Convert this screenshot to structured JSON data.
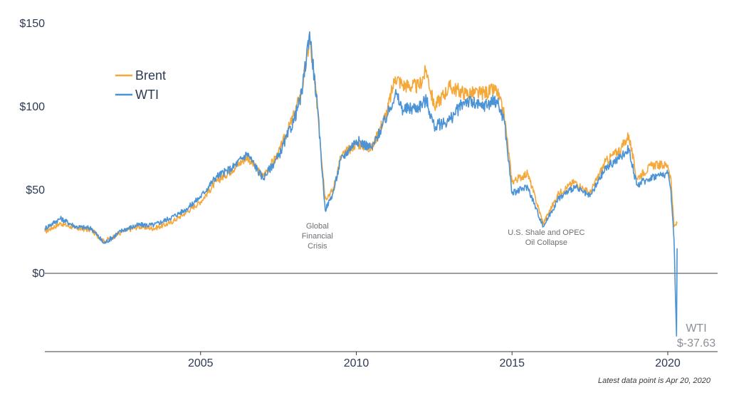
{
  "chart_data": {
    "type": "line",
    "title": "",
    "xlabel": "",
    "ylabel": "",
    "ylim": [
      -47,
      150
    ],
    "xlim": [
      2000,
      2021.6
    ],
    "y_ticks": [
      {
        "value": 150,
        "label": "$150"
      },
      {
        "value": 100,
        "label": "$100"
      },
      {
        "value": 50,
        "label": "$50"
      },
      {
        "value": 0,
        "label": "$0"
      }
    ],
    "x_ticks": [
      {
        "value": 2005,
        "label": "2005"
      },
      {
        "value": 2010,
        "label": "2010"
      },
      {
        "value": 2015,
        "label": "2015"
      },
      {
        "value": 2020,
        "label": "2020"
      }
    ],
    "legend": {
      "position": "top-left",
      "entries": [
        "Brent",
        "WTI"
      ]
    },
    "series": [
      {
        "name": "Brent",
        "color": "#F5A83A",
        "x": [
          2000.0,
          2000.5,
          2001.0,
          2001.5,
          2001.9,
          2002.5,
          2003.0,
          2003.5,
          2004.0,
          2004.5,
          2005.0,
          2005.5,
          2006.0,
          2006.5,
          2007.0,
          2007.5,
          2008.0,
          2008.25,
          2008.5,
          2008.75,
          2009.0,
          2009.25,
          2009.5,
          2010.0,
          2010.5,
          2011.0,
          2011.25,
          2011.5,
          2012.0,
          2012.25,
          2012.5,
          2013.0,
          2013.5,
          2014.0,
          2014.5,
          2014.75,
          2015.0,
          2015.5,
          2016.0,
          2016.5,
          2017.0,
          2017.5,
          2018.0,
          2018.5,
          2018.75,
          2019.0,
          2019.5,
          2020.0,
          2020.1,
          2020.2,
          2020.3
        ],
        "values": [
          25,
          30,
          27,
          26,
          19,
          25,
          28,
          27,
          30,
          36,
          43,
          55,
          62,
          70,
          58,
          72,
          95,
          110,
          140,
          100,
          45,
          50,
          70,
          78,
          75,
          98,
          118,
          113,
          112,
          122,
          100,
          112,
          108,
          108,
          110,
          95,
          55,
          60,
          30,
          48,
          55,
          48,
          67,
          75,
          83,
          57,
          65,
          65,
          57,
          28,
          30
        ]
      },
      {
        "name": "WTI",
        "color": "#4C93D6",
        "x": [
          2000.0,
          2000.5,
          2001.0,
          2001.5,
          2001.9,
          2002.5,
          2003.0,
          2003.5,
          2004.0,
          2004.5,
          2005.0,
          2005.5,
          2006.0,
          2006.5,
          2007.0,
          2007.5,
          2008.0,
          2008.25,
          2008.5,
          2008.75,
          2009.0,
          2009.25,
          2009.5,
          2010.0,
          2010.5,
          2011.0,
          2011.25,
          2011.5,
          2012.0,
          2012.25,
          2012.5,
          2013.0,
          2013.5,
          2014.0,
          2014.5,
          2014.75,
          2015.0,
          2015.5,
          2016.0,
          2016.5,
          2017.0,
          2017.5,
          2018.0,
          2018.5,
          2018.75,
          2019.0,
          2019.5,
          2020.0,
          2020.1,
          2020.2,
          2020.28,
          2020.3
        ],
        "values": [
          27,
          33,
          28,
          27,
          18,
          26,
          29,
          29,
          33,
          38,
          46,
          58,
          63,
          72,
          57,
          70,
          92,
          108,
          145,
          100,
          38,
          48,
          68,
          80,
          75,
          95,
          108,
          98,
          100,
          104,
          88,
          92,
          104,
          100,
          104,
          92,
          48,
          52,
          28,
          45,
          52,
          46,
          63,
          70,
          75,
          53,
          58,
          60,
          50,
          20,
          -37.63,
          15
        ]
      }
    ],
    "annotations": [
      {
        "lines": [
          "Global",
          "Financial",
          "Crisis"
        ],
        "x": 2008.75,
        "y": 27
      },
      {
        "lines": [
          "U.S. Shale and OPEC",
          "Oil Collapse"
        ],
        "x": 2016.1,
        "y": 23
      }
    ],
    "end_label": {
      "series": "WTI",
      "name": "WTI",
      "value": "$-37.63"
    },
    "note": "Latest data point is Apr 20, 2020"
  }
}
